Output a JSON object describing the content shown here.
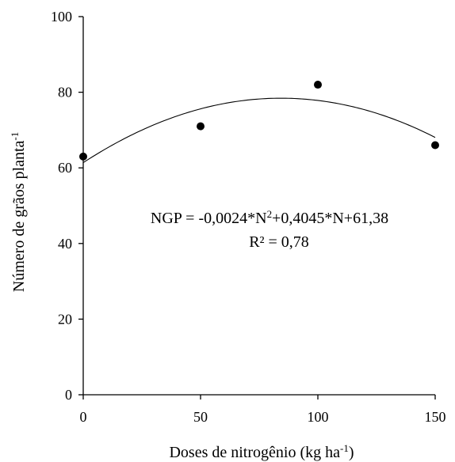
{
  "chart_data": {
    "type": "scatter",
    "title": "",
    "xlabel": {
      "main": "Doses de nitrogênio (kg ha",
      "sup": "-1",
      "close": ")"
    },
    "ylabel": {
      "main": "Número de grãos planta",
      "sup": "-1"
    },
    "xlim": [
      0,
      150
    ],
    "ylim": [
      0,
      100
    ],
    "xticks": [
      0,
      50,
      100,
      150
    ],
    "yticks": [
      0,
      20,
      40,
      60,
      80,
      100
    ],
    "grid": false,
    "points": [
      {
        "x": 0,
        "y": 63
      },
      {
        "x": 50,
        "y": 71
      },
      {
        "x": 100,
        "y": 82
      },
      {
        "x": 150,
        "y": 66
      }
    ],
    "fit": {
      "type": "quadratic",
      "a": -0.0024,
      "b": 0.4045,
      "c": 61.38,
      "x_range": [
        0,
        150
      ]
    },
    "annotation": {
      "eq_part1": "NGP = -0,0024*N",
      "eq_sup": "2",
      "eq_part2": "+0,4045*N+61,38",
      "r2": "R² = 0,78"
    }
  }
}
